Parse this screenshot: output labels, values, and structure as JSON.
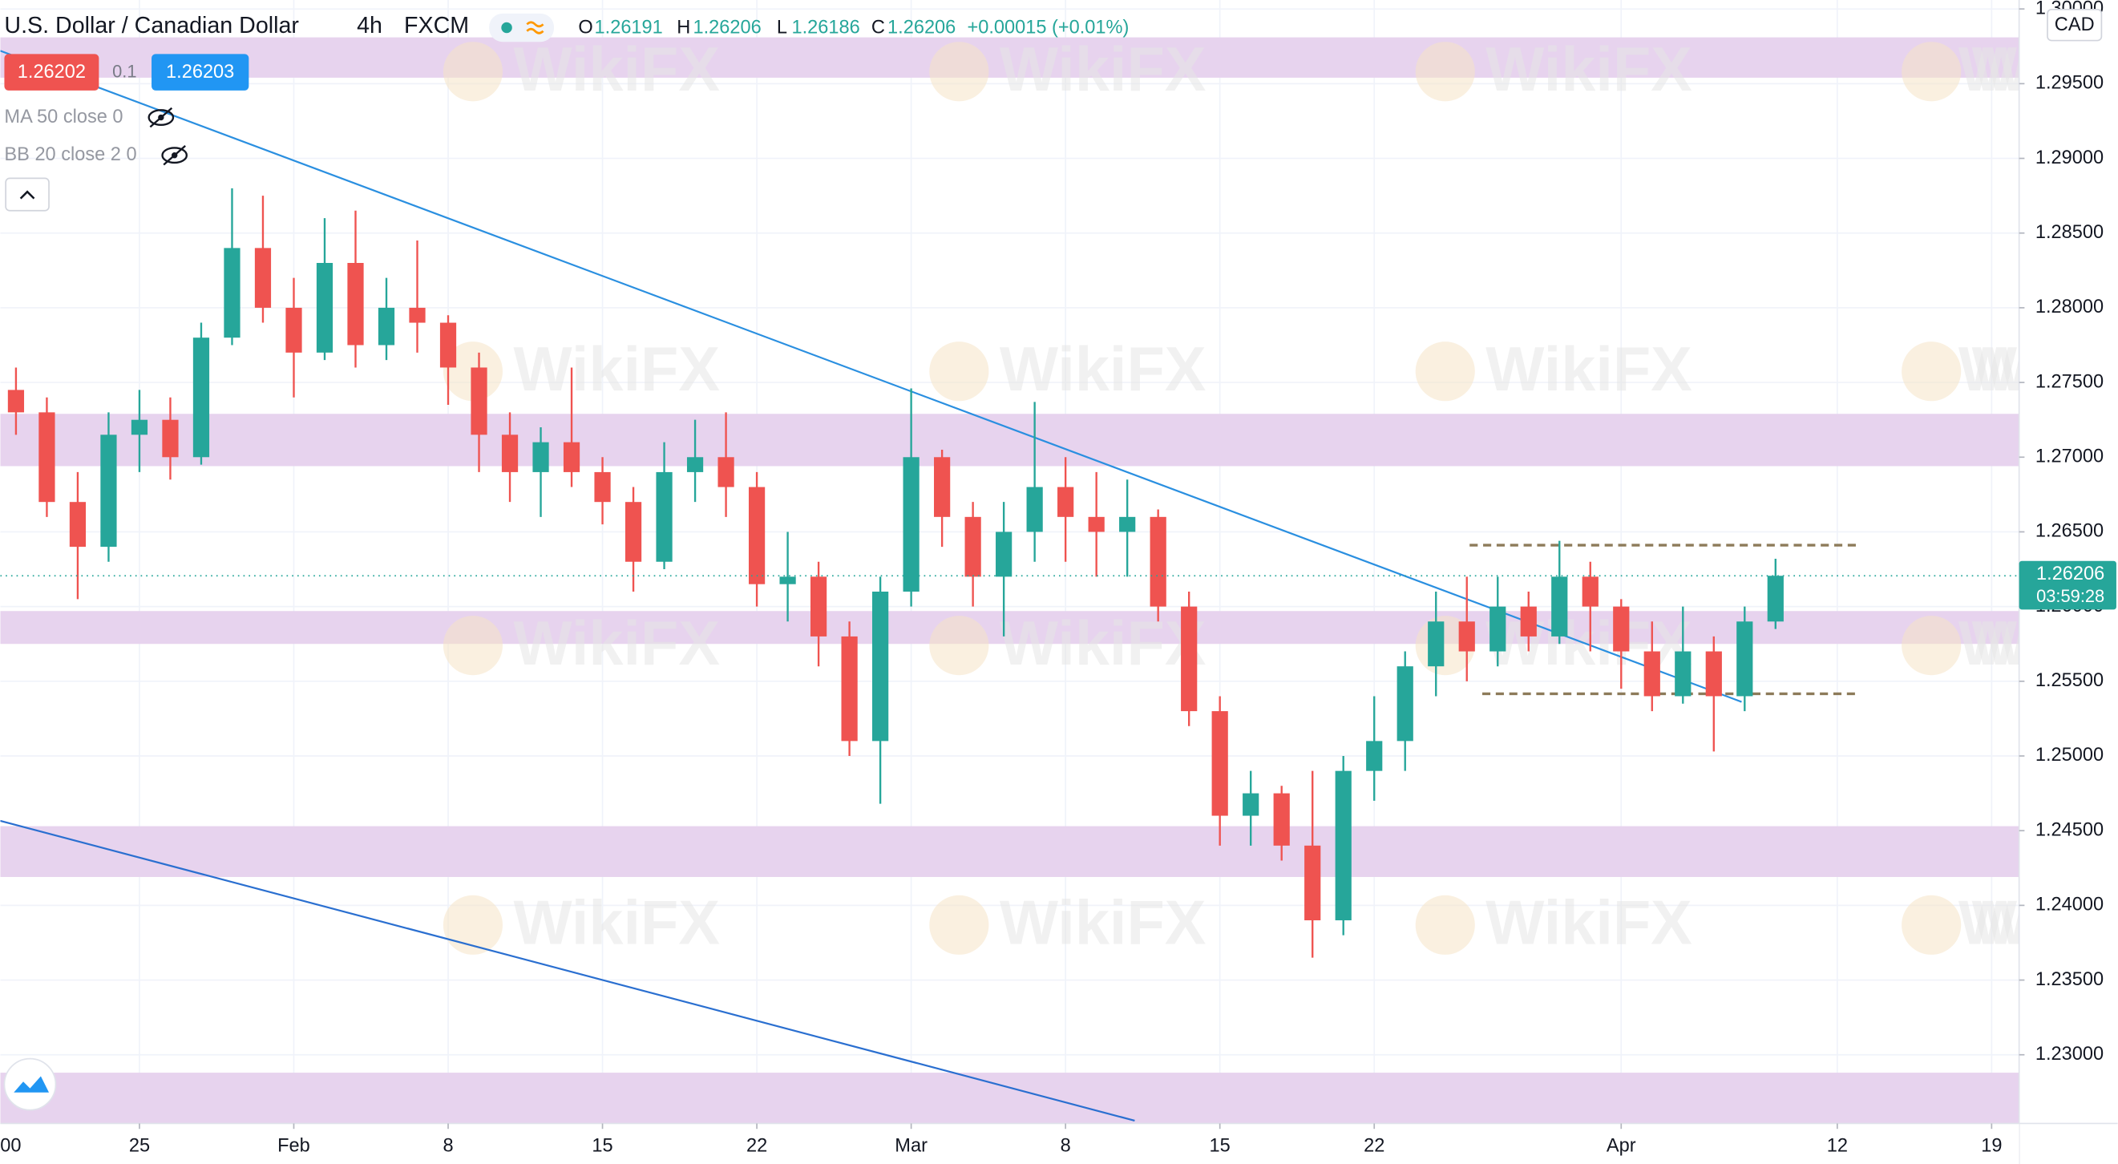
{
  "chart_data": {
    "type": "candlestick",
    "title": "U.S. Dollar / Canadian Dollar",
    "interval": "4h",
    "source": "FXCM",
    "ohlc_header": {
      "open_label": "O",
      "open": 1.26191,
      "high_label": "H",
      "high": 1.26206,
      "low_label": "L",
      "low": 1.26186,
      "close_label": "C",
      "close": 1.26206,
      "change": "+0.00015 (+0.01%)"
    },
    "sell_price": "1.26202",
    "spread": "0.1",
    "buy_price": "1.26203",
    "indicators": [
      "MA 50 close 0",
      "BB 20 close 2 0"
    ],
    "currency": "CAD",
    "last_price": 1.26206,
    "countdown": "03:59:28",
    "watermark": "WikiFX",
    "x_cut_label": ":00",
    "categories": [
      null,
      null,
      null,
      null,
      "25",
      null,
      null,
      null,
      null,
      "Feb",
      null,
      null,
      null,
      null,
      "8",
      null,
      null,
      null,
      null,
      "15",
      null,
      null,
      null,
      null,
      "22",
      null,
      null,
      null,
      null,
      "Mar",
      null,
      null,
      null,
      null,
      "8",
      null,
      null,
      null,
      null,
      "15",
      null,
      null,
      null,
      null,
      "22",
      null,
      null,
      null,
      null,
      null,
      null,
      null,
      "Apr",
      null,
      null,
      null,
      null,
      null,
      null,
      "12",
      null,
      null,
      null,
      null,
      "19"
    ],
    "open": [
      1.2745,
      1.273,
      1.267,
      1.264,
      1.2715,
      1.2725,
      1.27,
      1.278,
      1.284,
      1.28,
      1.277,
      1.283,
      1.2775,
      1.28,
      1.279,
      1.276,
      1.2715,
      1.269,
      1.271,
      1.269,
      1.267,
      1.263,
      1.269,
      1.27,
      1.268,
      1.2615,
      1.262,
      1.258,
      1.251,
      1.261,
      1.27,
      1.266,
      1.262,
      1.265,
      1.268,
      1.266,
      1.265,
      1.266,
      1.26,
      1.253,
      1.246,
      1.2475,
      1.244,
      1.239,
      1.249,
      1.251,
      1.256,
      1.259,
      1.257,
      1.26,
      1.258,
      1.262,
      1.26,
      1.257,
      1.254,
      1.257,
      1.254,
      1.259,
      null,
      null,
      null,
      null,
      null,
      null,
      null
    ],
    "high": [
      1.276,
      1.274,
      1.269,
      1.273,
      1.2745,
      1.274,
      1.279,
      1.288,
      1.2875,
      1.282,
      1.286,
      1.2865,
      1.282,
      1.2845,
      1.2795,
      1.277,
      1.273,
      1.272,
      1.276,
      1.27,
      1.268,
      1.271,
      1.2725,
      1.273,
      1.269,
      1.265,
      1.263,
      1.259,
      1.262,
      1.2746,
      1.2705,
      1.267,
      1.267,
      1.2737,
      1.27,
      1.269,
      1.2685,
      1.2665,
      1.261,
      1.254,
      1.249,
      1.248,
      1.249,
      1.25,
      1.254,
      1.257,
      1.261,
      1.262,
      1.262,
      1.261,
      1.2644,
      1.263,
      1.2605,
      1.259,
      1.26,
      1.258,
      1.26,
      1.2632,
      null,
      null,
      null,
      null,
      null,
      null,
      null
    ],
    "low": [
      1.2715,
      1.266,
      1.2605,
      1.263,
      1.269,
      1.2685,
      1.2695,
      1.2775,
      1.279,
      1.274,
      1.2765,
      1.276,
      1.2765,
      1.277,
      1.2735,
      1.269,
      1.267,
      1.266,
      1.268,
      1.2655,
      1.261,
      1.2625,
      1.267,
      1.266,
      1.26,
      1.259,
      1.256,
      1.25,
      1.2468,
      1.26,
      1.264,
      1.26,
      1.258,
      1.263,
      1.263,
      1.262,
      1.262,
      1.259,
      1.252,
      1.244,
      1.244,
      1.243,
      1.2365,
      1.238,
      1.247,
      1.249,
      1.254,
      1.255,
      1.256,
      1.257,
      1.2575,
      1.257,
      1.2545,
      1.253,
      1.2535,
      1.2503,
      1.253,
      1.2585,
      null,
      null,
      null,
      null,
      null,
      null,
      null
    ],
    "close": [
      1.273,
      1.267,
      1.264,
      1.2715,
      1.2725,
      1.27,
      1.278,
      1.284,
      1.28,
      1.277,
      1.283,
      1.2775,
      1.28,
      1.279,
      1.276,
      1.2715,
      1.269,
      1.271,
      1.269,
      1.267,
      1.263,
      1.269,
      1.27,
      1.268,
      1.2615,
      1.262,
      1.258,
      1.251,
      1.261,
      1.27,
      1.266,
      1.262,
      1.265,
      1.268,
      1.266,
      1.265,
      1.266,
      1.26,
      1.253,
      1.246,
      1.2475,
      1.244,
      1.239,
      1.249,
      1.251,
      1.256,
      1.259,
      1.257,
      1.26,
      1.258,
      1.262,
      1.26,
      1.257,
      1.254,
      1.257,
      1.254,
      1.259,
      1.26206,
      null,
      null,
      null,
      null,
      null,
      null,
      null
    ],
    "up_color": "#26a69a",
    "down_color": "#ef5350",
    "ylim": [
      1.2254,
      1.3006
    ],
    "yticks": [
      {
        "value": 1.23,
        "label": "1.23000"
      },
      {
        "value": 1.235,
        "label": "1.23500"
      },
      {
        "value": 1.24,
        "label": "1.24000"
      },
      {
        "value": 1.245,
        "label": "1.24500"
      },
      {
        "value": 1.25,
        "label": "1.25000"
      },
      {
        "value": 1.255,
        "label": "1.25500"
      },
      {
        "value": 1.26,
        "label": "1.26000"
      },
      {
        "value": 1.265,
        "label": "1.26500"
      },
      {
        "value": 1.27,
        "label": "1.27000"
      },
      {
        "value": 1.275,
        "label": "1.27500"
      },
      {
        "value": 1.28,
        "label": "1.28000"
      },
      {
        "value": 1.285,
        "label": "1.28500"
      },
      {
        "value": 1.29,
        "label": "1.29000"
      },
      {
        "value": 1.295,
        "label": "1.29500"
      },
      {
        "value": 1.3,
        "label": "1.30000"
      }
    ],
    "grid": true,
    "zone_color": "#e7d3ee",
    "zones": [
      [
        1.2954,
        1.2981
      ],
      [
        1.2694,
        1.2729
      ],
      [
        1.2575,
        1.2597
      ],
      [
        1.2419,
        1.2453
      ],
      [
        1.2254,
        1.2288
      ]
    ],
    "trendlines": [
      {
        "x": [
          -0.507,
          55.9
        ],
        "y": [
          1.2972,
          1.25362
        ],
        "color": "#2a8fe0"
      },
      {
        "x": [
          -0.507,
          36.24
        ],
        "y": [
          1.24566,
          1.22559
        ],
        "color": "#2a6fd0"
      }
    ],
    "levels": [
      {
        "value": 1.26411,
        "x": [
          47.09,
          59.77
        ],
        "color": "#8d7b5a"
      },
      {
        "value": 1.25416,
        "x": [
          47.5,
          59.64
        ],
        "color": "#8d7b5a"
      }
    ]
  }
}
